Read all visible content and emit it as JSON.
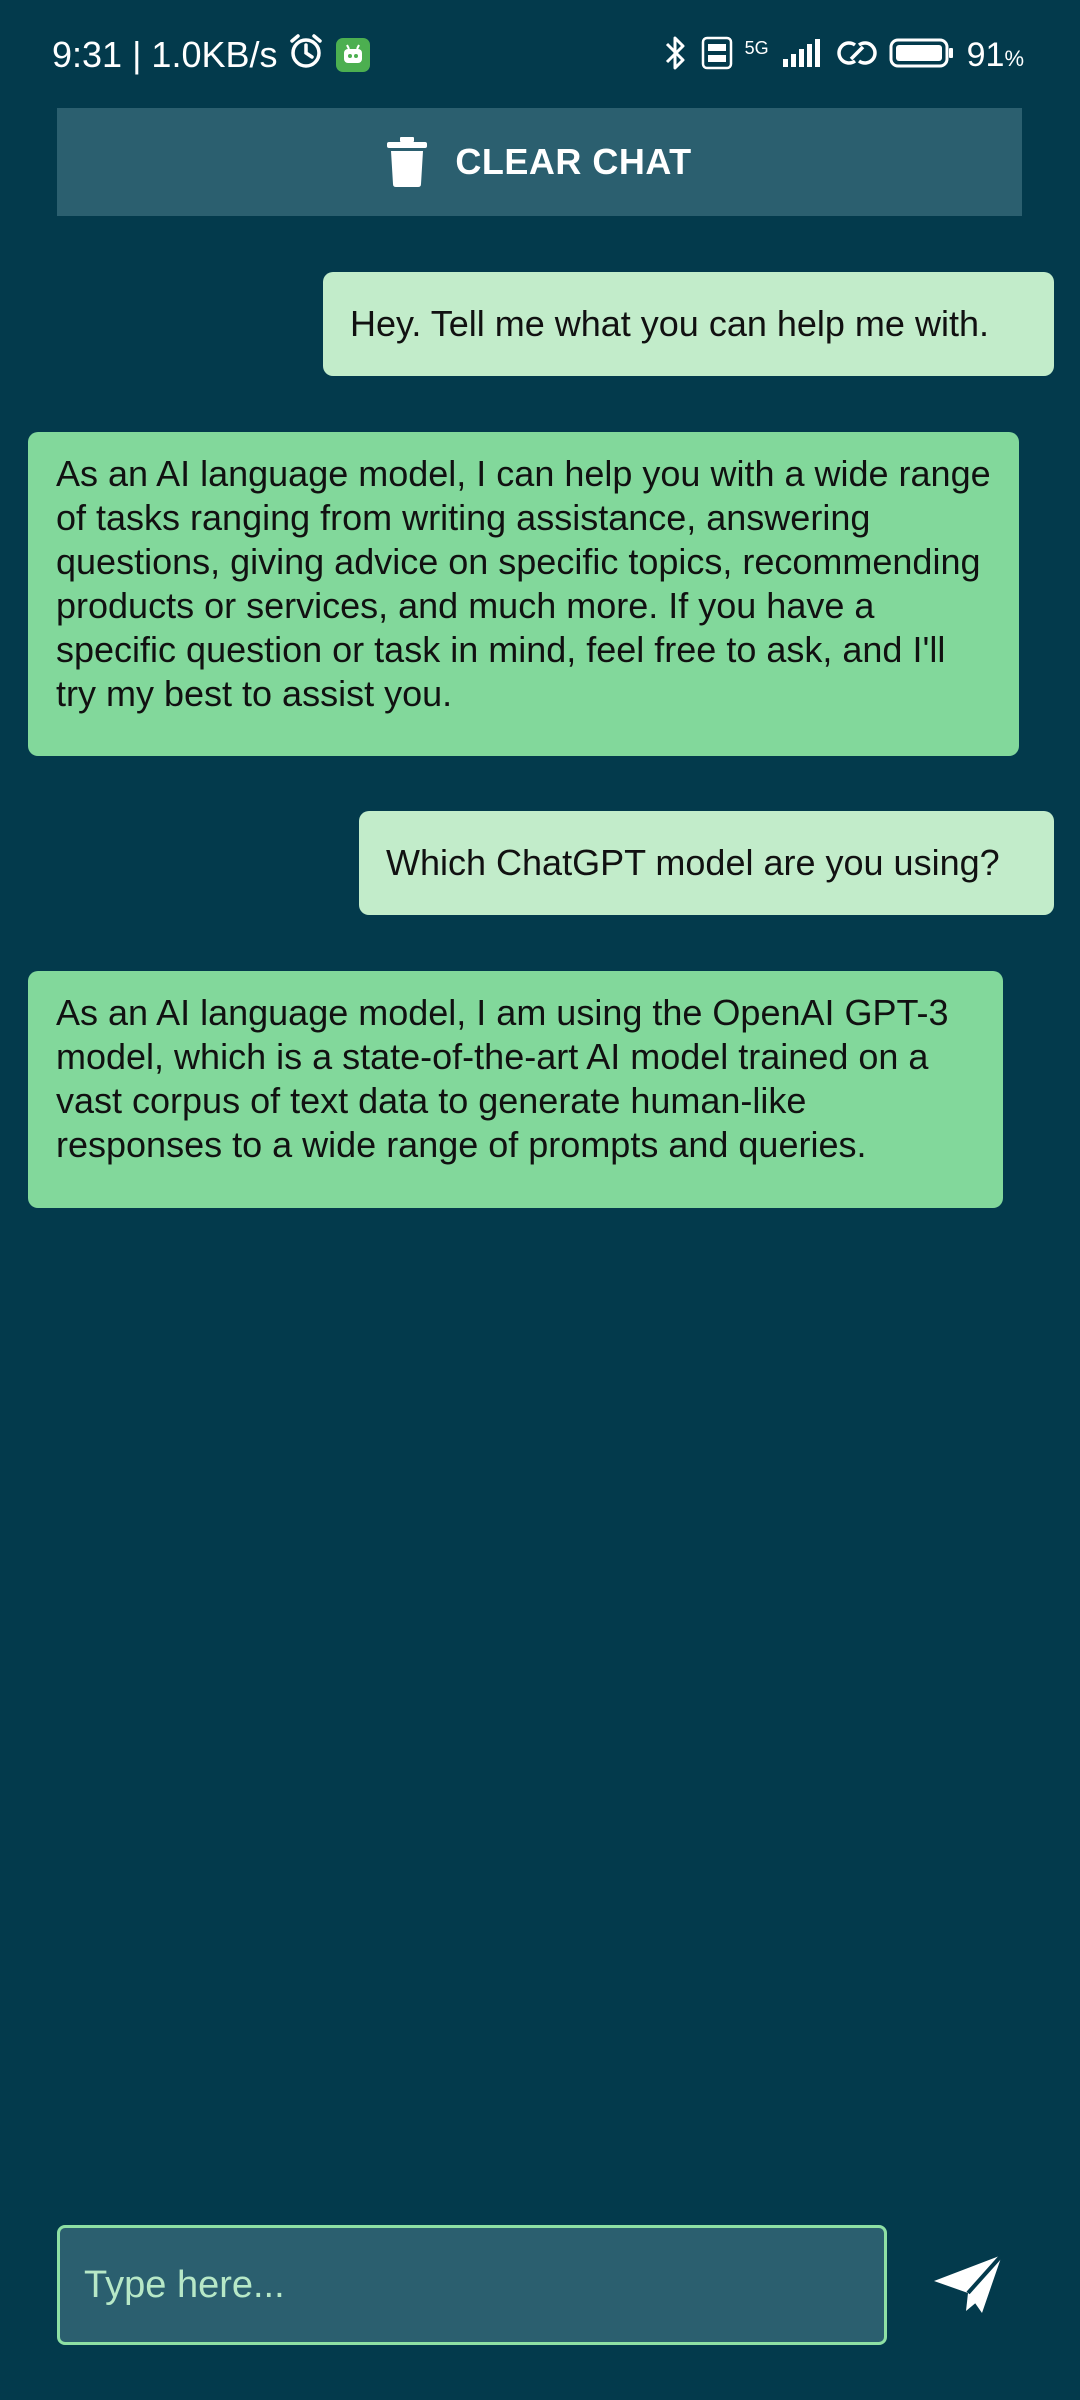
{
  "status_bar": {
    "time_and_speed": "9:31 | 1.0KB/s",
    "network_type": "5G",
    "battery_percent": "91",
    "battery_suffix": "%"
  },
  "toolbar": {
    "clear_label": "CLEAR CHAT"
  },
  "messages": [
    {
      "role": "user",
      "text": "Hey. Tell me what you can help me with."
    },
    {
      "role": "assistant",
      "text": "As an AI language model, I can help you with a wide range of tasks ranging from writing assistance, answering questions, giving advice on specific topics, recommending products or services, and much more. If you have a specific question or task in mind, feel free to ask, and I'll try my best to assist you."
    },
    {
      "role": "user",
      "text": "Which ChatGPT model are you using?"
    },
    {
      "role": "assistant",
      "text": "As an AI language model, I am using the OpenAI GPT-3 model, which is a state-of-the-art AI model trained on a vast corpus of text data to generate human-like responses to a wide range of prompts and queries."
    }
  ],
  "composer": {
    "placeholder": "Type here...",
    "value": ""
  },
  "colors": {
    "background": "#033a4c",
    "button_bg": "#2b5f6f",
    "user_bubble": "#c2ecca",
    "assistant_bubble": "#82d89b",
    "input_border": "#8ee0a4"
  },
  "icons": {
    "clear": "trash-icon",
    "send": "send-icon"
  }
}
